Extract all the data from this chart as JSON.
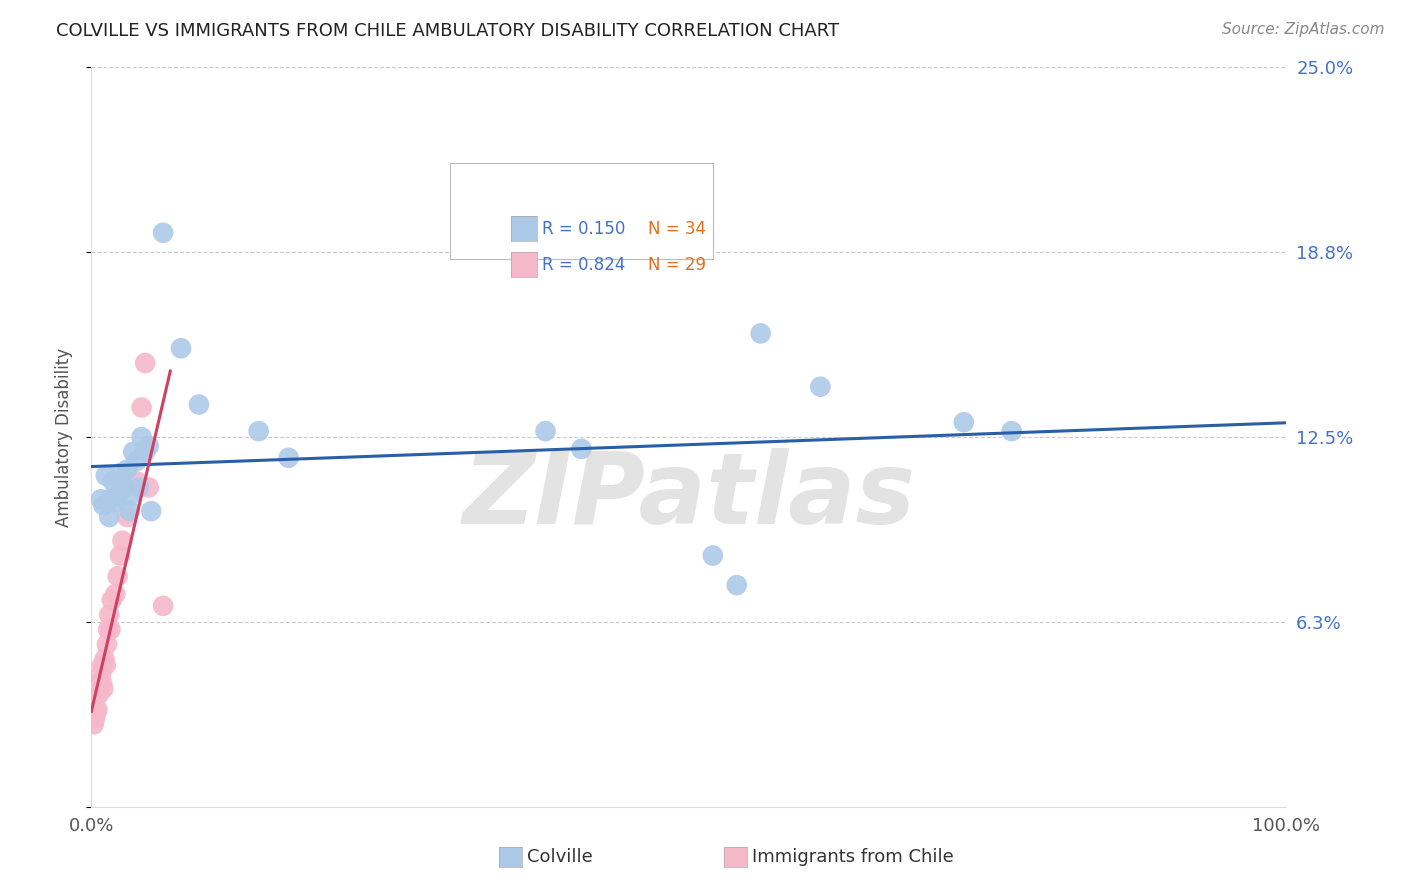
{
  "title": "COLVILLE VS IMMIGRANTS FROM CHILE AMBULATORY DISABILITY CORRELATION CHART",
  "source": "Source: ZipAtlas.com",
  "ylabel": "Ambulatory Disability",
  "legend_labels": [
    "Colville",
    "Immigrants from Chile"
  ],
  "r_colville": 0.15,
  "n_colville": 34,
  "r_chile": 0.824,
  "n_chile": 29,
  "colville_color": "#adc9e8",
  "chile_color": "#f5b8cb",
  "colville_line_color": "#2a5fa8",
  "chile_line_color": "#d04060",
  "xlim": [
    0.0,
    1.0
  ],
  "ylim": [
    0.0,
    0.25
  ],
  "ytick_vals": [
    0.0,
    0.0625,
    0.125,
    0.1875,
    0.25
  ],
  "ytick_labels_right": [
    "",
    "6.3%",
    "12.5%",
    "18.8%",
    "25.0%"
  ],
  "xtick_vals": [
    0.0,
    0.2,
    0.4,
    0.6,
    0.8,
    1.0
  ],
  "xtick_labels": [
    "0.0%",
    "",
    "",
    "",
    "",
    "100.0%"
  ],
  "background_color": "#ffffff",
  "watermark": "ZIPatlas",
  "label_color": "#4472c4",
  "n_color": "#e07020",
  "colville_x": [
    0.008,
    0.01,
    0.012,
    0.015,
    0.015,
    0.018,
    0.02,
    0.022,
    0.025,
    0.025,
    0.028,
    0.03,
    0.032,
    0.032,
    0.035,
    0.038,
    0.04,
    0.042,
    0.045,
    0.048,
    0.05,
    0.06,
    0.075,
    0.09,
    0.14,
    0.165,
    0.38,
    0.41,
    0.52,
    0.54,
    0.56,
    0.61,
    0.73,
    0.77
  ],
  "colville_y": [
    0.104,
    0.102,
    0.112,
    0.104,
    0.098,
    0.11,
    0.103,
    0.105,
    0.113,
    0.108,
    0.108,
    0.114,
    0.105,
    0.1,
    0.12,
    0.117,
    0.108,
    0.125,
    0.12,
    0.122,
    0.1,
    0.194,
    0.155,
    0.136,
    0.127,
    0.118,
    0.127,
    0.121,
    0.085,
    0.075,
    0.16,
    0.142,
    0.13,
    0.127
  ],
  "chile_x": [
    0.002,
    0.003,
    0.004,
    0.005,
    0.006,
    0.006,
    0.007,
    0.007,
    0.008,
    0.009,
    0.009,
    0.01,
    0.011,
    0.012,
    0.013,
    0.014,
    0.015,
    0.016,
    0.017,
    0.02,
    0.022,
    0.024,
    0.026,
    0.03,
    0.038,
    0.042,
    0.045,
    0.048,
    0.06
  ],
  "chile_y": [
    0.028,
    0.03,
    0.032,
    0.033,
    0.038,
    0.04,
    0.042,
    0.04,
    0.045,
    0.048,
    0.042,
    0.04,
    0.05,
    0.048,
    0.055,
    0.06,
    0.065,
    0.06,
    0.07,
    0.072,
    0.078,
    0.085,
    0.09,
    0.098,
    0.11,
    0.135,
    0.15,
    0.108,
    0.068
  ]
}
